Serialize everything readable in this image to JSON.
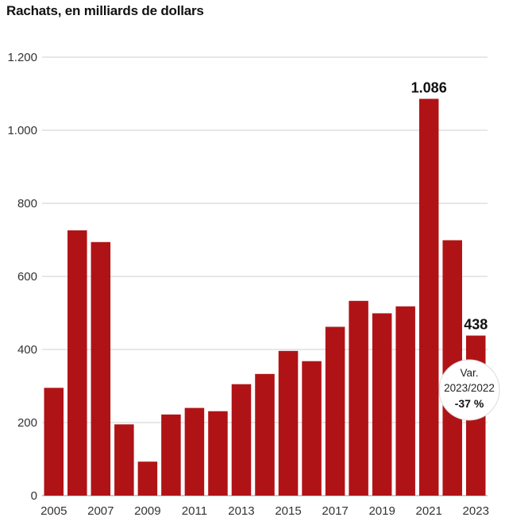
{
  "chart_data": {
    "type": "bar",
    "title": "Rachats, en milliards de dollars",
    "categories": [
      "2005",
      "2006",
      "2007",
      "2008",
      "2009",
      "2010",
      "2011",
      "2012",
      "2013",
      "2014",
      "2015",
      "2016",
      "2017",
      "2018",
      "2019",
      "2020",
      "2021",
      "2022",
      "2023"
    ],
    "values": [
      295,
      726,
      694,
      195,
      93,
      222,
      240,
      231,
      305,
      333,
      396,
      368,
      462,
      533,
      499,
      518,
      1086,
      699,
      438
    ],
    "xtick_labels": [
      "2005",
      "2007",
      "2009",
      "2011",
      "2013",
      "2015",
      "2017",
      "2019",
      "2021",
      "2023"
    ],
    "yticks": [
      {
        "value": 0,
        "label": "0"
      },
      {
        "value": 200,
        "label": "200"
      },
      {
        "value": 400,
        "label": "400"
      },
      {
        "value": 600,
        "label": "600"
      },
      {
        "value": 800,
        "label": "800"
      },
      {
        "value": 1000,
        "label": "1.000"
      },
      {
        "value": 1200,
        "label": "1.200"
      }
    ],
    "ylim": [
      0,
      1200
    ],
    "grid": true,
    "bar_color": "#b01316",
    "data_labels": [
      {
        "category": "2021",
        "text": "1.086"
      },
      {
        "category": "2023",
        "text": "438"
      }
    ],
    "annotation": {
      "line1": "Var.",
      "line2": "2023/2022",
      "line3": "-37 %"
    }
  }
}
